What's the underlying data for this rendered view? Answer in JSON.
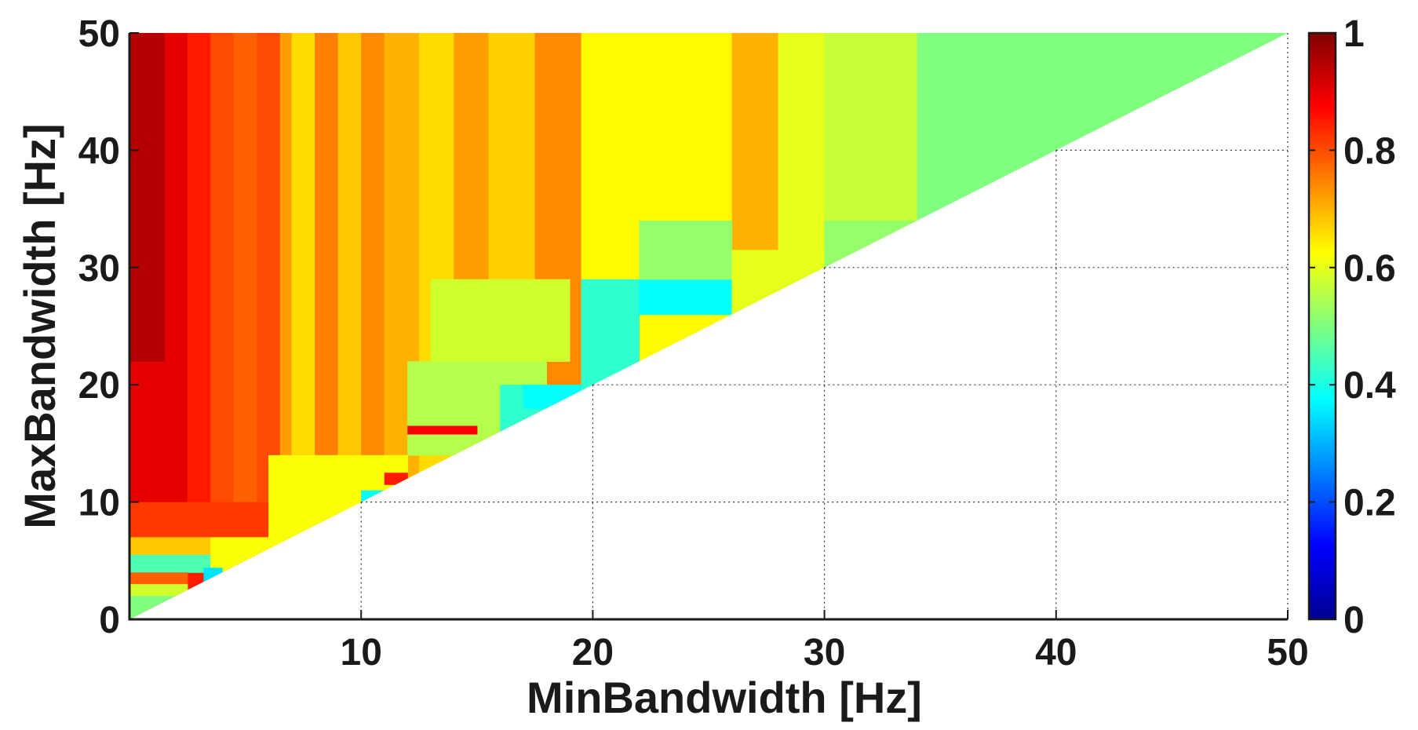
{
  "chart_data": {
    "type": "heatmap",
    "title": "",
    "xlabel": "MinBandwidth [Hz]",
    "ylabel": "MaxBandwidth [Hz]",
    "xlim": [
      0,
      50
    ],
    "ylim": [
      0,
      50
    ],
    "xticks": [
      "10",
      "20",
      "30",
      "40",
      "50"
    ],
    "yticks": [
      "0",
      "10",
      "20",
      "30",
      "40",
      "50"
    ],
    "grid": true,
    "colormap": "jet",
    "colorbar": {
      "range": [
        0,
        1
      ],
      "ticks": [
        "0",
        "0.2",
        "0.4",
        "0.6",
        "0.8",
        "1"
      ]
    },
    "valid_region": "MaxBandwidth >= MinBandwidth",
    "columns": [
      {
        "x_range": [
          0,
          1.5
        ],
        "value": 0.92
      },
      {
        "x_range": [
          1.5,
          2.5
        ],
        "value": 0.9
      },
      {
        "x_range": [
          2.5,
          3.5
        ],
        "value": 0.85
      },
      {
        "x_range": [
          3.5,
          4.5
        ],
        "value": 0.8
      },
      {
        "x_range": [
          4.5,
          5.5
        ],
        "value": 0.78
      },
      {
        "x_range": [
          5.5,
          6.5
        ],
        "value": 0.8
      },
      {
        "x_range": [
          6.5,
          7.0
        ],
        "value": 0.72
      },
      {
        "x_range": [
          7.0,
          8.0
        ],
        "value": 0.66
      },
      {
        "x_range": [
          8.0,
          9.0
        ],
        "value": 0.75
      },
      {
        "x_range": [
          9.0,
          10.0
        ],
        "value": 0.68
      },
      {
        "x_range": [
          10.0,
          11.0
        ],
        "value": 0.74
      },
      {
        "x_range": [
          11.0,
          12.5
        ],
        "value": 0.7
      },
      {
        "x_range": [
          12.5,
          14.0
        ],
        "value": 0.66
      },
      {
        "x_range": [
          14.0,
          15.5
        ],
        "value": 0.72
      },
      {
        "x_range": [
          15.5,
          17.5
        ],
        "value": 0.67
      },
      {
        "x_range": [
          17.5,
          19.5
        ],
        "value": 0.74
      },
      {
        "x_range": [
          19.5,
          26.0
        ],
        "value": 0.63
      },
      {
        "x_range": [
          26.0,
          28.0
        ],
        "value": 0.7
      },
      {
        "x_range": [
          28.0,
          30.0
        ],
        "value": 0.6
      },
      {
        "x_range": [
          30.0,
          34.0
        ],
        "value": 0.57
      },
      {
        "x_range": [
          34.0,
          50.0
        ],
        "value": 0.5
      }
    ],
    "row_overrides": [
      {
        "x_range": [
          0,
          1.5
        ],
        "y_range": [
          10,
          22
        ],
        "value": 0.9
      },
      {
        "x_range": [
          0,
          1.5
        ],
        "y_range": [
          22,
          50
        ],
        "value": 0.95
      },
      {
        "x_range": [
          0,
          7
        ],
        "y_range": [
          7,
          10
        ],
        "value": 0.82
      },
      {
        "x_range": [
          0,
          3.5
        ],
        "y_range": [
          5.5,
          7
        ],
        "value": 0.68
      },
      {
        "x_range": [
          0,
          3.5
        ],
        "y_range": [
          4,
          5.5
        ],
        "value": 0.45
      },
      {
        "x_range": [
          0,
          2.5
        ],
        "y_range": [
          3,
          4
        ],
        "value": 0.78
      },
      {
        "x_range": [
          0,
          2.5
        ],
        "y_range": [
          2,
          3
        ],
        "value": 0.58
      },
      {
        "x_range": [
          0,
          2.5
        ],
        "y_range": [
          0,
          2
        ],
        "value": 0.5
      },
      {
        "x_range": [
          3.5,
          7
        ],
        "y_range": [
          3.5,
          7
        ],
        "value": 0.62
      },
      {
        "x_range": [
          6,
          12
        ],
        "y_range": [
          6,
          14
        ],
        "value": 0.62
      },
      {
        "x_range": [
          12,
          18
        ],
        "y_range": [
          14,
          22
        ],
        "value": 0.55
      },
      {
        "x_range": [
          16,
          20
        ],
        "y_range": [
          16,
          20
        ],
        "value": 0.42
      },
      {
        "x_range": [
          17,
          19.5
        ],
        "y_range": [
          18,
          20
        ],
        "value": 0.38
      },
      {
        "x_range": [
          13,
          19
        ],
        "y_range": [
          22,
          29
        ],
        "value": 0.58
      },
      {
        "x_range": [
          19.5,
          22
        ],
        "y_range": [
          20,
          29
        ],
        "value": 0.42
      },
      {
        "x_range": [
          22,
          26
        ],
        "y_range": [
          26,
          29
        ],
        "value": 0.38
      },
      {
        "x_range": [
          22,
          26
        ],
        "y_range": [
          29,
          34
        ],
        "value": 0.52
      },
      {
        "x_range": [
          26,
          30
        ],
        "y_range": [
          26,
          31.5
        ],
        "value": 0.6
      },
      {
        "x_range": [
          30,
          34
        ],
        "y_range": [
          30,
          34
        ],
        "value": 0.52
      },
      {
        "x_range": [
          10,
          11
        ],
        "y_range": [
          10,
          11
        ],
        "value": 0.38
      },
      {
        "x_range": [
          11,
          12
        ],
        "y_range": [
          11.5,
          12.5
        ],
        "value": 0.85
      },
      {
        "x_range": [
          12,
          15
        ],
        "y_range": [
          15.8,
          16.5
        ],
        "value": 0.88
      },
      {
        "x_range": [
          3.2,
          4.0
        ],
        "y_range": [
          3.2,
          4.4
        ],
        "value": 0.35
      }
    ]
  }
}
